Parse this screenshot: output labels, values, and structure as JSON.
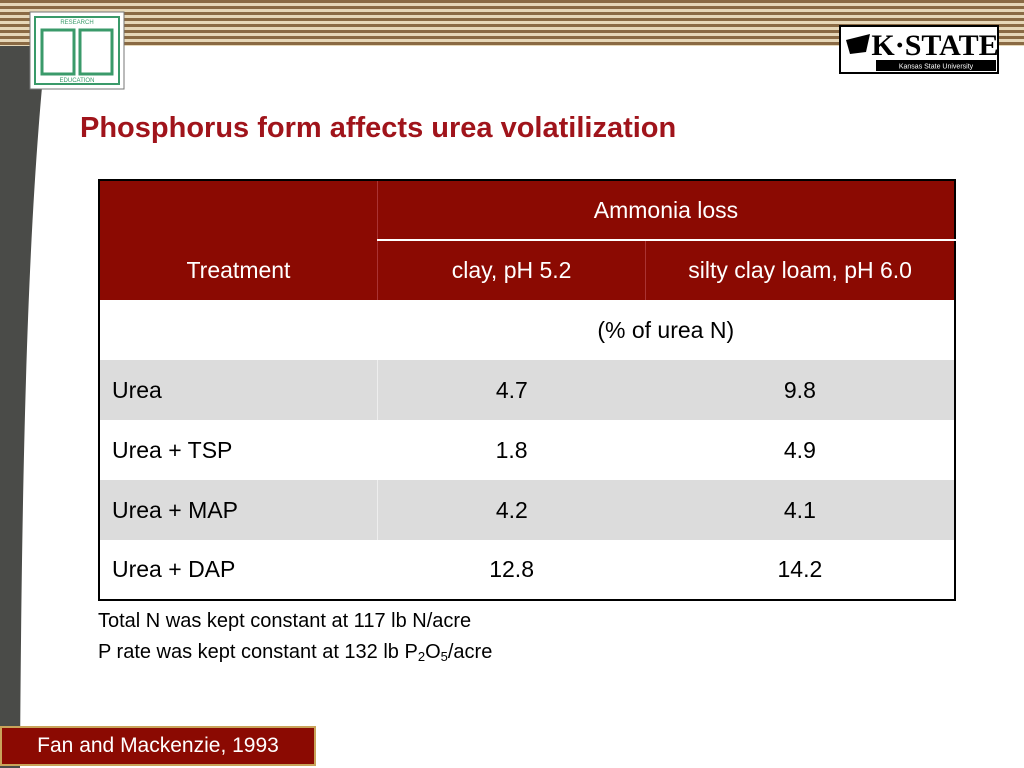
{
  "logos": {
    "left": {
      "top_text": "RESEARCH",
      "bottom_text": "EDUCATION"
    },
    "right": {
      "name": "K·STATE",
      "subtitle": "Kansas State University"
    }
  },
  "header": {
    "title": "Phosphorus form affects urea volatilization"
  },
  "table": {
    "group_header": "Ammonia loss",
    "columns": [
      "Treatment",
      "clay, pH 5.2",
      "silty clay loam, pH 6.0"
    ],
    "unit": "(% of urea N)",
    "rows": [
      [
        "Urea",
        4.7,
        9.8
      ],
      [
        "Urea + TSP",
        1.8,
        4.9
      ],
      [
        "Urea + MAP",
        4.2,
        4.1
      ],
      [
        "Urea + DAP",
        12.8,
        14.2
      ]
    ]
  },
  "notes": {
    "line1": "Total N was kept constant at 117 lb N/acre",
    "line2": {
      "text": "P rate was kept constant at 132 lb P",
      "sub1": "2",
      "mid": "O",
      "sub2": "5",
      "end": "/acre"
    }
  },
  "citation": "Fan and Mackenzie, 1993"
}
